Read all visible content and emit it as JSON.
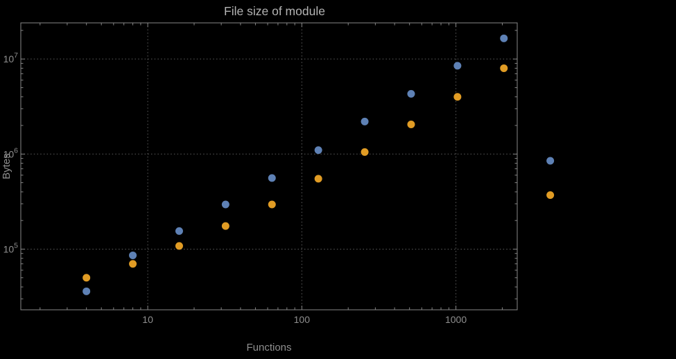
{
  "style": {
    "background": "#000000",
    "frame_color": "#878787",
    "grid_color": "#5e5e5e",
    "title_color": "#b3b3b3",
    "label_color": "#8f8f8f",
    "tick_label_color": "#8f8f8f"
  },
  "chart_data": {
    "type": "scatter",
    "title": "File size of module",
    "xlabel": "Functions",
    "ylabel": "Bytes",
    "x_scale": "log",
    "y_scale": "log",
    "x_range": [
      1.5,
      2500
    ],
    "y_range": [
      23000,
      24000000
    ],
    "x_ticks": [
      10,
      100,
      1000
    ],
    "x_tick_labels": [
      "10",
      "100",
      "1000"
    ],
    "y_ticks": [
      100000,
      1000000,
      10000000
    ],
    "y_tick_labels": [
      {
        "base": "10",
        "exp": "5"
      },
      {
        "base": "10",
        "exp": "6"
      },
      {
        "base": "10",
        "exp": "7"
      }
    ],
    "grid": "dotted",
    "legend": "none",
    "x": [
      4,
      8,
      16,
      32,
      64,
      128,
      256,
      512,
      1024,
      2048,
      4096
    ],
    "series": [
      {
        "name": "blue",
        "color": "#5e81b5",
        "values": [
          36000,
          86000,
          155000,
          295000,
          560000,
          1100000,
          2200000,
          4300000,
          8500000,
          16500000,
          850000
        ]
      },
      {
        "name": "orange",
        "color": "#e19c24",
        "values": [
          50000,
          70000,
          108000,
          175000,
          295000,
          550000,
          1050000,
          2050000,
          4000000,
          8000000,
          370000
        ]
      }
    ]
  }
}
